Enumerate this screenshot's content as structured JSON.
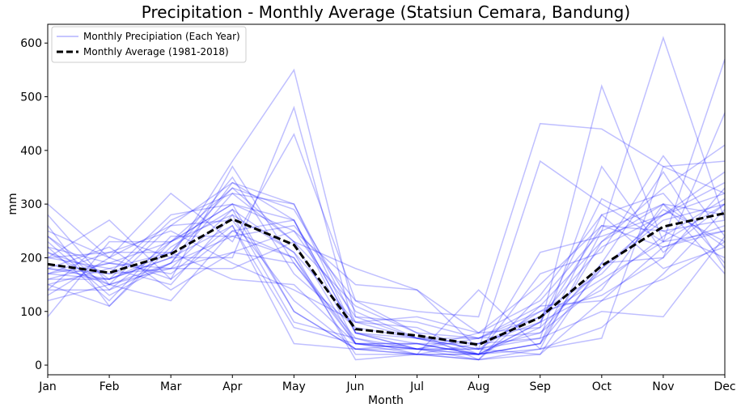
{
  "chart_data": {
    "type": "line",
    "title": "Precipitation - Monthly Average (Statsiun Cemara, Bandung)",
    "xlabel": "Month",
    "ylabel": "mm",
    "categories": [
      "Jan",
      "Feb",
      "Mar",
      "Apr",
      "May",
      "Jun",
      "Jul",
      "Aug",
      "Sep",
      "Oct",
      "Nov",
      "Dec"
    ],
    "ylim": [
      -18,
      635
    ],
    "yticks": [
      0,
      100,
      200,
      300,
      400,
      500,
      600
    ],
    "grid": false,
    "legend_position": "top-left",
    "legend": [
      {
        "label": "Monthly Precipiation (Each Year)",
        "style": "thin-blue"
      },
      {
        "label": "Monthly Average (1981-2018)",
        "style": "dashed-black"
      }
    ],
    "colors": {
      "yearly": "#0000ff",
      "average": "#000000"
    },
    "series": [
      {
        "name": "Monthly Average (1981-2018)",
        "role": "average",
        "values": [
          188,
          172,
          207,
          272,
          224,
          67,
          55,
          38,
          89,
          185,
          258,
          283
        ]
      },
      {
        "role": "year",
        "values": [
          280,
          150,
          190,
          340,
          300,
          60,
          40,
          20,
          30,
          250,
          300,
          220
        ]
      },
      {
        "role": "year",
        "values": [
          240,
          160,
          200,
          380,
          550,
          90,
          50,
          30,
          50,
          370,
          210,
          300
        ]
      },
      {
        "role": "year",
        "values": [
          200,
          270,
          160,
          250,
          200,
          40,
          30,
          20,
          80,
          310,
          250,
          270
        ]
      },
      {
        "role": "year",
        "values": [
          150,
          110,
          220,
          290,
          100,
          30,
          20,
          140,
          30,
          50,
          370,
          320
        ]
      },
      {
        "role": "year",
        "values": [
          300,
          200,
          320,
          230,
          430,
          120,
          100,
          90,
          450,
          440,
          370,
          380
        ]
      },
      {
        "role": "year",
        "values": [
          120,
          150,
          260,
          340,
          270,
          40,
          20,
          10,
          30,
          70,
          170,
          290
        ]
      },
      {
        "role": "year",
        "values": [
          180,
          170,
          180,
          180,
          230,
          110,
          60,
          50,
          100,
          170,
          290,
          230
        ]
      },
      {
        "role": "year",
        "values": [
          240,
          140,
          230,
          330,
          230,
          40,
          40,
          20,
          70,
          520,
          230,
          250
        ]
      },
      {
        "role": "year",
        "values": [
          160,
          160,
          210,
          350,
          170,
          70,
          50,
          20,
          210,
          240,
          280,
          360
        ]
      },
      {
        "role": "year",
        "values": [
          90,
          230,
          230,
          300,
          100,
          30,
          40,
          40,
          80,
          140,
          300,
          170
        ]
      },
      {
        "role": "year",
        "values": [
          200,
          180,
          150,
          280,
          210,
          10,
          20,
          10,
          20,
          120,
          160,
          230
        ]
      },
      {
        "role": "year",
        "values": [
          210,
          150,
          120,
          250,
          270,
          60,
          30,
          60,
          120,
          250,
          610,
          270
        ]
      },
      {
        "role": "year",
        "values": [
          170,
          160,
          270,
          320,
          300,
          80,
          70,
          20,
          40,
          280,
          180,
          220
        ]
      },
      {
        "role": "year",
        "values": [
          180,
          160,
          200,
          200,
          480,
          60,
          50,
          50,
          60,
          190,
          200,
          470
        ]
      },
      {
        "role": "year",
        "values": [
          140,
          140,
          190,
          320,
          230,
          180,
          140,
          60,
          70,
          180,
          280,
          320
        ]
      },
      {
        "role": "year",
        "values": [
          260,
          110,
          230,
          280,
          80,
          50,
          30,
          20,
          80,
          260,
          250,
          200
        ]
      },
      {
        "role": "year",
        "values": [
          130,
          200,
          260,
          270,
          120,
          30,
          30,
          50,
          90,
          160,
          230,
          300
        ]
      },
      {
        "role": "year",
        "values": [
          170,
          210,
          210,
          330,
          290,
          100,
          50,
          30,
          100,
          130,
          200,
          330
        ]
      },
      {
        "role": "year",
        "values": [
          230,
          130,
          190,
          240,
          200,
          20,
          20,
          20,
          170,
          210,
          390,
          240
        ]
      },
      {
        "role": "year",
        "values": [
          190,
          150,
          180,
          210,
          250,
          150,
          140,
          30,
          380,
          300,
          230,
          570
        ]
      },
      {
        "role": "year",
        "values": [
          150,
          180,
          210,
          160,
          150,
          40,
          40,
          20,
          40,
          230,
          330,
          410
        ]
      },
      {
        "role": "year",
        "values": [
          220,
          190,
          170,
          260,
          70,
          40,
          30,
          30,
          20,
          190,
          360,
          180
        ]
      },
      {
        "role": "year",
        "values": [
          200,
          210,
          250,
          190,
          140,
          80,
          90,
          60,
          150,
          260,
          220,
          260
        ]
      },
      {
        "role": "year",
        "values": [
          160,
          190,
          230,
          300,
          250,
          90,
          80,
          50,
          110,
          230,
          300,
          280
        ]
      },
      {
        "role": "year",
        "values": [
          250,
          200,
          160,
          370,
          190,
          40,
          30,
          30,
          60,
          150,
          240,
          310
        ]
      },
      {
        "role": "year",
        "values": [
          180,
          220,
          140,
          210,
          190,
          50,
          20,
          20,
          40,
          180,
          270,
          300
        ]
      },
      {
        "role": "year",
        "values": [
          210,
          170,
          280,
          300,
          270,
          60,
          30,
          10,
          110,
          120,
          220,
          250
        ]
      },
      {
        "role": "year",
        "values": [
          140,
          240,
          200,
          260,
          40,
          30,
          20,
          40,
          90,
          220,
          280,
          340
        ]
      },
      {
        "role": "year",
        "values": [
          220,
          120,
          240,
          240,
          260,
          120,
          60,
          10,
          130,
          280,
          320,
          190
        ]
      },
      {
        "role": "year",
        "values": [
          170,
          190,
          180,
          290,
          210,
          80,
          50,
          40,
          50,
          100,
          90,
          240
        ]
      }
    ]
  }
}
